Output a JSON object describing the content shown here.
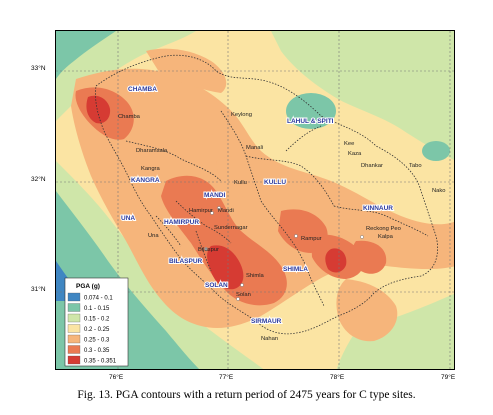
{
  "lat_ticks": [
    "33°N",
    "32°N",
    "31°N"
  ],
  "lon_ticks": [
    "76°E",
    "77°E",
    "78°E",
    "79°E"
  ],
  "districts": [
    {
      "name": "CHAMBA"
    },
    {
      "name": "LAHUL & SPITI"
    },
    {
      "name": "KANGRA"
    },
    {
      "name": "MANDI"
    },
    {
      "name": "KULLU"
    },
    {
      "name": "KINNAUR"
    },
    {
      "name": "UNA"
    },
    {
      "name": "HAMIRPUR"
    },
    {
      "name": "BILASPUR"
    },
    {
      "name": "SOLAN"
    },
    {
      "name": "SHIMLA"
    },
    {
      "name": "SIRMAUR"
    }
  ],
  "towns": [
    "Chamba",
    "Keylong",
    "Dharamsala",
    "Kangra",
    "Manali",
    "Kee",
    "Kaza",
    "Dhankar",
    "Tabo",
    "Nako",
    "Kullu",
    "Mandi",
    "Hamirpur",
    "Sundernagar",
    "Una",
    "Bilaspur",
    "Rampur",
    "Reckong Peo",
    "Kalpa",
    "Shimla",
    "Solan",
    "Nahan"
  ],
  "legend": {
    "title": "PGA (g)",
    "items": [
      {
        "label": "0.074 - 0.1",
        "color": "#3f86c2"
      },
      {
        "label": "0.1 - 0.15",
        "color": "#7cc6a8"
      },
      {
        "label": "0.15 - 0.2",
        "color": "#cfe6a9"
      },
      {
        "label": "0.2 - 0.25",
        "color": "#fbe4a3"
      },
      {
        "label": "0.25 - 0.3",
        "color": "#f6b57b"
      },
      {
        "label": "0.3 - 0.35",
        "color": "#ea7a52"
      },
      {
        "label": "0.35 - 0.351",
        "color": "#d63b33"
      }
    ]
  },
  "caption": "Fig. 13. PGA contours with a return period of 2475 years for C type sites."
}
